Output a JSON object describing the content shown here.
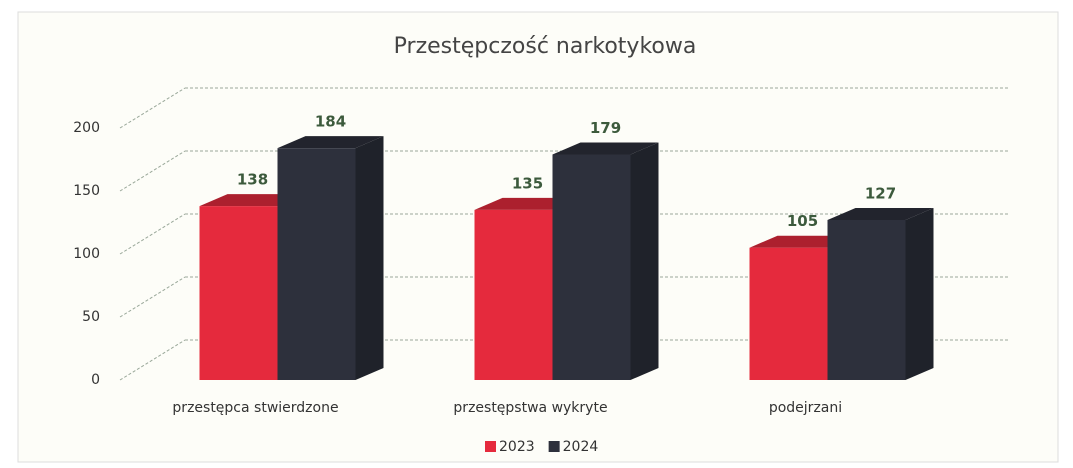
{
  "chart_data": {
    "type": "bar3d",
    "title": "Przestępczość narkotykowa",
    "categories": [
      "przestępca stwierdzone",
      "przestępstwa wykryte",
      "podejrzani"
    ],
    "series": [
      {
        "name": "2023",
        "color": "#e52a3d",
        "values": [
          138,
          135,
          105
        ]
      },
      {
        "name": "2024",
        "color": "#2d303c",
        "values": [
          184,
          179,
          127
        ]
      }
    ],
    "ylim": [
      0,
      200
    ],
    "yticks": [
      0,
      50,
      100,
      150,
      200
    ],
    "grid": true,
    "legend": "bottom"
  }
}
